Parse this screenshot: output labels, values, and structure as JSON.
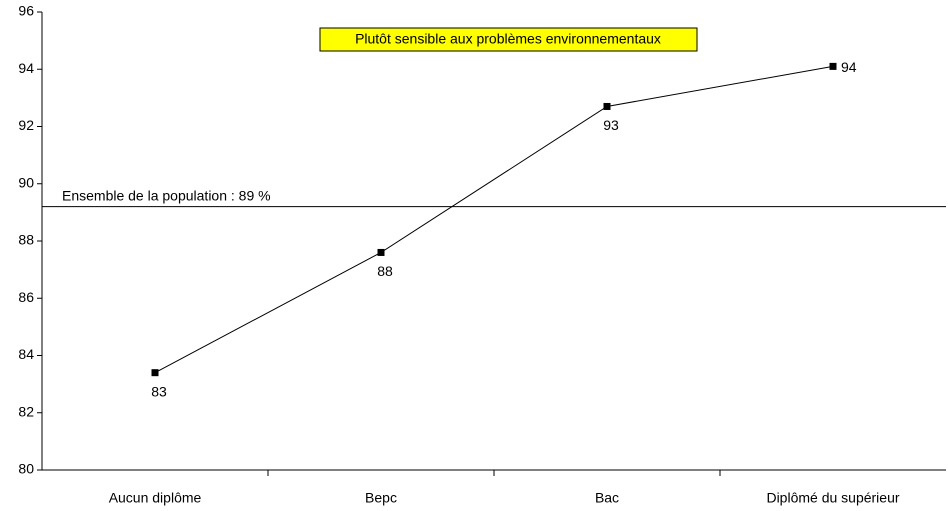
{
  "chart_data": {
    "type": "line",
    "title": "Plutôt sensible aux problèmes environnementaux",
    "categories": [
      "Aucun diplôme",
      "Bepc",
      "Bac",
      "Diplômé du supérieur"
    ],
    "series": [
      {
        "name": null,
        "color": "#000000",
        "values": [
          83.4,
          87.6,
          92.7,
          94.1
        ],
        "value_labels": [
          "83",
          "88",
          "93",
          "94"
        ]
      }
    ],
    "ylim": [
      80,
      96
    ],
    "yticks": [
      80,
      82,
      84,
      86,
      88,
      90,
      92,
      94,
      96
    ],
    "reference_line": {
      "value": 89.2,
      "label": "Ensemble de la population : 89 %"
    },
    "grid": false
  }
}
